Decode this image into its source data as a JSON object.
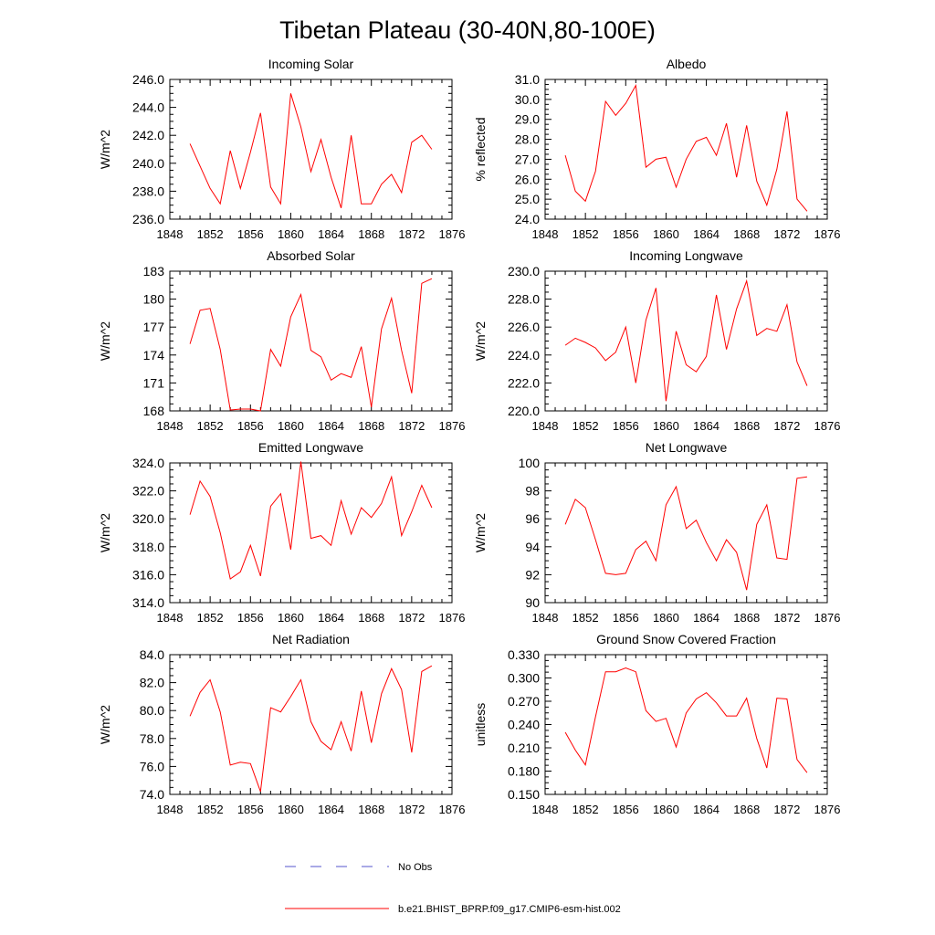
{
  "page": {
    "title": "Tibetan Plateau (30-40N,80-100E)"
  },
  "legend": {
    "entries": [
      {
        "label": "No Obs",
        "color": "#5555cc",
        "style": "dashed"
      },
      {
        "label": "b.e21.BHIST_BPRP.f09_g17.CMIP6-esm-hist.002",
        "color": "#ff0000",
        "style": "solid"
      }
    ]
  },
  "chart_data": [
    {
      "type": "line",
      "title": "Incoming Solar",
      "ylabel": "W/m^2",
      "xlim": [
        1848,
        1876
      ],
      "xticks": [
        1848,
        1852,
        1856,
        1860,
        1864,
        1868,
        1872,
        1876
      ],
      "ylim": [
        236.0,
        246.0
      ],
      "yticks": [
        "236.0",
        "238.0",
        "240.0",
        "242.0",
        "244.0",
        "246.0"
      ],
      "series": [
        {
          "name": "b.e21.BHIST_BPRP.f09_g17.CMIP6-esm-hist.002",
          "color": "#ff0000",
          "x": [
            1850,
            1851,
            1852,
            1853,
            1854,
            1855,
            1856,
            1857,
            1858,
            1859,
            1860,
            1861,
            1862,
            1863,
            1864,
            1865,
            1866,
            1867,
            1868,
            1869,
            1870,
            1871,
            1872,
            1873,
            1874
          ],
          "values": [
            241.4,
            239.8,
            238.2,
            237.1,
            240.9,
            238.2,
            240.8,
            243.6,
            238.3,
            237.1,
            245.0,
            242.6,
            239.4,
            241.7,
            239.0,
            236.8,
            242.0,
            237.1,
            237.1,
            238.5,
            239.2,
            237.9,
            241.5,
            242.0,
            241.0
          ]
        }
      ]
    },
    {
      "type": "line",
      "title": "Albedo",
      "ylabel": "% reflected",
      "xlim": [
        1848,
        1876
      ],
      "xticks": [
        1848,
        1852,
        1856,
        1860,
        1864,
        1868,
        1872,
        1876
      ],
      "ylim": [
        24.0,
        31.0
      ],
      "yticks": [
        "24.0",
        "25.0",
        "26.0",
        "27.0",
        "28.0",
        "29.0",
        "30.0",
        "31.0"
      ],
      "series": [
        {
          "name": "b.e21.BHIST_BPRP.f09_g17.CMIP6-esm-hist.002",
          "color": "#ff0000",
          "x": [
            1850,
            1851,
            1852,
            1853,
            1854,
            1855,
            1856,
            1857,
            1858,
            1859,
            1860,
            1861,
            1862,
            1863,
            1864,
            1865,
            1866,
            1867,
            1868,
            1869,
            1870,
            1871,
            1872,
            1873,
            1874
          ],
          "values": [
            27.2,
            25.4,
            24.9,
            26.4,
            29.9,
            29.2,
            29.8,
            30.7,
            26.6,
            27.0,
            27.1,
            25.6,
            27.0,
            27.9,
            28.1,
            27.2,
            28.8,
            26.1,
            28.7,
            25.9,
            24.7,
            26.5,
            29.4,
            25.0,
            24.4
          ]
        }
      ]
    },
    {
      "type": "line",
      "title": "Absorbed Solar",
      "ylabel": "W/m^2",
      "xlim": [
        1848,
        1876
      ],
      "xticks": [
        1848,
        1852,
        1856,
        1860,
        1864,
        1868,
        1872,
        1876
      ],
      "ylim": [
        168,
        183
      ],
      "yticks": [
        "168",
        "171",
        "174",
        "177",
        "180",
        "183"
      ],
      "series": [
        {
          "name": "b.e21.BHIST_BPRP.f09_g17.CMIP6-esm-hist.002",
          "color": "#ff0000",
          "x": [
            1850,
            1851,
            1852,
            1853,
            1854,
            1855,
            1856,
            1857,
            1858,
            1859,
            1860,
            1861,
            1862,
            1863,
            1864,
            1865,
            1866,
            1867,
            1868,
            1869,
            1870,
            1871,
            1872,
            1873,
            1874
          ],
          "values": [
            175.2,
            178.8,
            179.0,
            174.6,
            168.1,
            168.2,
            168.2,
            168.0,
            174.6,
            172.8,
            178.1,
            180.5,
            174.5,
            173.8,
            171.3,
            172.0,
            171.6,
            174.9,
            168.4,
            176.8,
            180.1,
            174.5,
            169.9,
            181.7,
            182.2
          ]
        }
      ]
    },
    {
      "type": "line",
      "title": "Incoming Longwave",
      "ylabel": "W/m^2",
      "xlim": [
        1848,
        1876
      ],
      "xticks": [
        1848,
        1852,
        1856,
        1860,
        1864,
        1868,
        1872,
        1876
      ],
      "ylim": [
        220.0,
        230.0
      ],
      "yticks": [
        "220.0",
        "222.0",
        "224.0",
        "226.0",
        "228.0",
        "230.0"
      ],
      "series": [
        {
          "name": "b.e21.BHIST_BPRP.f09_g17.CMIP6-esm-hist.002",
          "color": "#ff0000",
          "x": [
            1850,
            1851,
            1852,
            1853,
            1854,
            1855,
            1856,
            1857,
            1858,
            1859,
            1860,
            1861,
            1862,
            1863,
            1864,
            1865,
            1866,
            1867,
            1868,
            1869,
            1870,
            1871,
            1872,
            1873,
            1874
          ],
          "values": [
            224.7,
            225.2,
            224.9,
            224.5,
            223.6,
            224.2,
            226.0,
            222.0,
            226.5,
            228.8,
            220.7,
            225.7,
            223.3,
            222.8,
            223.9,
            228.3,
            224.4,
            227.3,
            229.3,
            225.4,
            225.9,
            225.7,
            227.6,
            223.5,
            221.8
          ]
        }
      ]
    },
    {
      "type": "line",
      "title": "Emitted Longwave",
      "ylabel": "W/m^2",
      "xlim": [
        1848,
        1876
      ],
      "xticks": [
        1848,
        1852,
        1856,
        1860,
        1864,
        1868,
        1872,
        1876
      ],
      "ylim": [
        314.0,
        324.0
      ],
      "yticks": [
        "314.0",
        "316.0",
        "318.0",
        "320.0",
        "322.0",
        "324.0"
      ],
      "series": [
        {
          "name": "b.e21.BHIST_BPRP.f09_g17.CMIP6-esm-hist.002",
          "color": "#ff0000",
          "x": [
            1850,
            1851,
            1852,
            1853,
            1854,
            1855,
            1856,
            1857,
            1858,
            1859,
            1860,
            1861,
            1862,
            1863,
            1864,
            1865,
            1866,
            1867,
            1868,
            1869,
            1870,
            1871,
            1872,
            1873,
            1874
          ],
          "values": [
            320.3,
            322.7,
            321.6,
            319.0,
            315.7,
            316.2,
            318.1,
            315.9,
            320.9,
            321.8,
            317.8,
            324.1,
            318.6,
            318.8,
            318.1,
            321.3,
            318.9,
            320.8,
            320.1,
            321.1,
            323.0,
            318.8,
            320.5,
            322.4,
            320.8
          ]
        }
      ]
    },
    {
      "type": "line",
      "title": "Net Longwave",
      "ylabel": "W/m^2",
      "xlim": [
        1848,
        1876
      ],
      "xticks": [
        1848,
        1852,
        1856,
        1860,
        1864,
        1868,
        1872,
        1876
      ],
      "ylim": [
        90,
        100
      ],
      "yticks": [
        "90",
        "92",
        "94",
        "96",
        "98",
        "100"
      ],
      "series": [
        {
          "name": "b.e21.BHIST_BPRP.f09_g17.CMIP6-esm-hist.002",
          "color": "#ff0000",
          "x": [
            1850,
            1851,
            1852,
            1853,
            1854,
            1855,
            1856,
            1857,
            1858,
            1859,
            1860,
            1861,
            1862,
            1863,
            1864,
            1865,
            1866,
            1867,
            1868,
            1869,
            1870,
            1871,
            1872,
            1873,
            1874
          ],
          "values": [
            95.6,
            97.4,
            96.8,
            94.5,
            92.1,
            92.0,
            92.1,
            93.8,
            94.4,
            93.0,
            97.0,
            98.3,
            95.3,
            95.9,
            94.3,
            93.0,
            94.5,
            93.6,
            90.9,
            95.6,
            97.0,
            93.2,
            93.1,
            98.9,
            99.0
          ]
        }
      ]
    },
    {
      "type": "line",
      "title": "Net Radiation",
      "ylabel": "W/m^2",
      "xlim": [
        1848,
        1876
      ],
      "xticks": [
        1848,
        1852,
        1856,
        1860,
        1864,
        1868,
        1872,
        1876
      ],
      "ylim": [
        74.0,
        84.0
      ],
      "yticks": [
        "74.0",
        "76.0",
        "78.0",
        "80.0",
        "82.0",
        "84.0"
      ],
      "series": [
        {
          "name": "b.e21.BHIST_BPRP.f09_g17.CMIP6-esm-hist.002",
          "color": "#ff0000",
          "x": [
            1850,
            1851,
            1852,
            1853,
            1854,
            1855,
            1856,
            1857,
            1858,
            1859,
            1860,
            1861,
            1862,
            1863,
            1864,
            1865,
            1866,
            1867,
            1868,
            1869,
            1870,
            1871,
            1872,
            1873,
            1874
          ],
          "values": [
            79.6,
            81.3,
            82.2,
            79.9,
            76.1,
            76.3,
            76.2,
            74.2,
            80.2,
            79.9,
            81.0,
            82.2,
            79.2,
            77.8,
            77.2,
            79.2,
            77.1,
            81.4,
            77.7,
            81.2,
            83.0,
            81.5,
            77.0,
            82.8,
            83.2
          ]
        }
      ]
    },
    {
      "type": "line",
      "title": "Ground Snow Covered Fraction",
      "ylabel": "unitless",
      "xlim": [
        1848,
        1876
      ],
      "xticks": [
        1848,
        1852,
        1856,
        1860,
        1864,
        1868,
        1872,
        1876
      ],
      "ylim": [
        0.15,
        0.33
      ],
      "yticks": [
        "0.150",
        "0.180",
        "0.210",
        "0.240",
        "0.270",
        "0.300",
        "0.330"
      ],
      "series": [
        {
          "name": "b.e21.BHIST_BPRP.f09_g17.CMIP6-esm-hist.002",
          "color": "#ff0000",
          "x": [
            1850,
            1851,
            1852,
            1853,
            1854,
            1855,
            1856,
            1857,
            1858,
            1859,
            1860,
            1861,
            1862,
            1863,
            1864,
            1865,
            1866,
            1867,
            1868,
            1869,
            1870,
            1871,
            1872,
            1873,
            1874
          ],
          "values": [
            0.23,
            0.207,
            0.188,
            0.25,
            0.308,
            0.308,
            0.313,
            0.308,
            0.258,
            0.244,
            0.248,
            0.211,
            0.255,
            0.273,
            0.281,
            0.268,
            0.251,
            0.251,
            0.274,
            0.222,
            0.184,
            0.274,
            0.273,
            0.195,
            0.178
          ]
        }
      ]
    }
  ]
}
